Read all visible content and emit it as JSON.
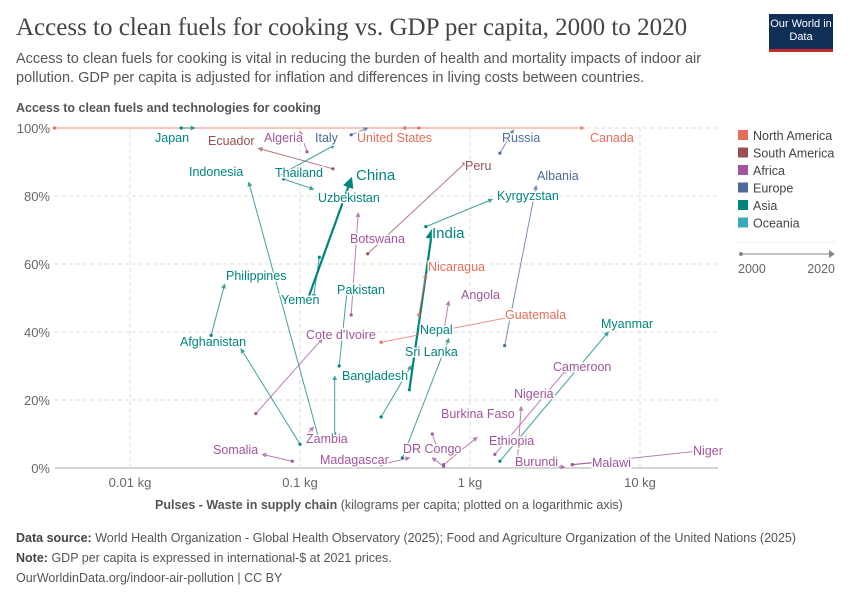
{
  "header": {
    "title": "Access to clean fuels for cooking vs. GDP per capita, 2000 to 2020",
    "subtitle": "Access to clean fuels for cooking is vital in reducing the burden of health and mortality impacts of indoor air pollution. GDP per capita is adjusted for inflation and differences in living costs between countries.",
    "logo": "Our World in Data"
  },
  "footer": {
    "source_label": "Data source:",
    "source": "World Health Organization - Global Health Observatory (2025); Food and Agriculture Organization of the United Nations (2025)",
    "note_label": "Note:",
    "note": "GDP per capita is expressed in international-$ at 2021 prices.",
    "link": "OurWorldinData.org/indoor-air-pollution | CC BY"
  },
  "chart_data": {
    "type": "scatter",
    "title": "Access to clean fuels for cooking vs. GDP per capita, 2000 to 2020",
    "ylabel": "Access to clean fuels and technologies for cooking",
    "xlabel_bold": "Pulses - Waste in supply chain",
    "xlabel_rest": "(kilograms per capita; plotted on a logarithmic axis)",
    "x_scale": "log",
    "xlim": [
      0.0035,
      28
    ],
    "ylim": [
      0,
      100
    ],
    "x_ticks": [
      {
        "v": 0.01,
        "label": "0.01 kg"
      },
      {
        "v": 0.1,
        "label": "0.1 kg"
      },
      {
        "v": 1,
        "label": "1 kg"
      },
      {
        "v": 10,
        "label": "10 kg"
      }
    ],
    "y_ticks": [
      {
        "v": 0,
        "label": "0%"
      },
      {
        "v": 20,
        "label": "20%"
      },
      {
        "v": 40,
        "label": "40%"
      },
      {
        "v": 60,
        "label": "60%"
      },
      {
        "v": 80,
        "label": "80%"
      },
      {
        "v": 100,
        "label": "100%"
      }
    ],
    "grid": true,
    "legend_position": "right",
    "legend": [
      {
        "name": "North America",
        "color": "#e56e5a"
      },
      {
        "name": "South America",
        "color": "#9a5050"
      },
      {
        "name": "Africa",
        "color": "#a2559c"
      },
      {
        "name": "Europe",
        "color": "#4c6a9c"
      },
      {
        "name": "Asia",
        "color": "#00847e"
      },
      {
        "name": "Oceania",
        "color": "#38aaba"
      }
    ],
    "time_legend": {
      "start": "2000",
      "end": "2020"
    },
    "series": [
      {
        "name": "Canada",
        "region": "North America",
        "start": [
          0.0036,
          100
        ],
        "end": [
          4.7,
          100
        ]
      },
      {
        "name": "Japan",
        "region": "Asia",
        "start": [
          0.02,
          100
        ],
        "end": [
          0.024,
          100
        ]
      },
      {
        "name": "Ecuador",
        "region": "South America",
        "start": [
          0.156,
          88
        ],
        "end": [
          0.057,
          94
        ]
      },
      {
        "name": "Algeria",
        "region": "Africa",
        "start": [
          0.11,
          93
        ],
        "end": [
          0.1,
          99
        ]
      },
      {
        "name": "Italy",
        "region": "Europe",
        "start": [
          0.2,
          98
        ],
        "end": [
          0.25,
          100
        ]
      },
      {
        "name": "United States",
        "region": "North America",
        "start": [
          0.5,
          100
        ],
        "end": [
          0.4,
          100
        ]
      },
      {
        "name": "Russia",
        "region": "Europe",
        "start": [
          1.5,
          92.6
        ],
        "end": [
          1.8,
          99.4
        ]
      },
      {
        "name": "Peru",
        "region": "South America",
        "start": [
          0.25,
          63
        ],
        "end": [
          0.95,
          90
        ]
      },
      {
        "name": "Albania",
        "region": "Europe",
        "start": [
          1.6,
          36
        ],
        "end": [
          2.45,
          83
        ]
      },
      {
        "name": "Kyrgyzstan",
        "region": "Asia",
        "start": [
          0.55,
          71
        ],
        "end": [
          1.35,
          79
        ]
      },
      {
        "name": "India",
        "region": "Asia",
        "start": [
          0.44,
          23
        ],
        "end": [
          0.6,
          70
        ],
        "big": true
      },
      {
        "name": "China",
        "region": "Asia",
        "start": [
          0.11,
          49
        ],
        "end": [
          0.2,
          85
        ],
        "big": true
      },
      {
        "name": "Indonesia",
        "region": "Asia",
        "start": [
          0.13,
          8
        ],
        "end": [
          0.05,
          84
        ]
      },
      {
        "name": "Thailand",
        "region": "Asia",
        "start": [
          0.075,
          86
        ],
        "end": [
          0.16,
          95
        ]
      },
      {
        "name": "Uzbekistan",
        "region": "Asia",
        "start": [
          0.08,
          85
        ],
        "end": [
          0.12,
          82
        ]
      },
      {
        "name": "Botswana",
        "region": "Africa",
        "start": [
          0.2,
          45
        ],
        "end": [
          0.22,
          75
        ]
      },
      {
        "name": "Nicaragua",
        "region": "North America",
        "start": [
          0.5,
          45
        ],
        "end": [
          0.55,
          57
        ]
      },
      {
        "name": "Philippines",
        "region": "Asia",
        "start": [
          0.03,
          39
        ],
        "end": [
          0.036,
          54
        ]
      },
      {
        "name": "Yemen",
        "region": "Asia",
        "start": [
          0.13,
          62
        ],
        "end": [
          0.12,
          50
        ]
      },
      {
        "name": "Pakistan",
        "region": "Asia",
        "start": [
          0.17,
          30
        ],
        "end": [
          0.19,
          53
        ]
      },
      {
        "name": "Angola",
        "region": "Africa",
        "start": [
          0.7,
          40
        ],
        "end": [
          0.75,
          49
        ]
      },
      {
        "name": "Guatemala",
        "region": "North America",
        "start": [
          0.3,
          37
        ],
        "end": [
          2.0,
          45
        ]
      },
      {
        "name": "Myanmar",
        "region": "Asia",
        "start": [
          1.5,
          2
        ],
        "end": [
          6.5,
          40
        ]
      },
      {
        "name": "Afghanistan",
        "region": "Asia",
        "start": [
          0.1,
          7
        ],
        "end": [
          0.045,
          35
        ]
      },
      {
        "name": "Cote d'Ivoire",
        "region": "Africa",
        "start": [
          0.055,
          16
        ],
        "end": [
          0.135,
          38
        ]
      },
      {
        "name": "Nepal",
        "region": "Asia",
        "start": [
          0.4,
          3
        ],
        "end": [
          0.75,
          38
        ]
      },
      {
        "name": "Sri Lanka",
        "region": "Asia",
        "start": [
          0.3,
          15
        ],
        "end": [
          0.45,
          30
        ]
      },
      {
        "name": "Bangladesh",
        "region": "Asia",
        "start": [
          0.16,
          10
        ],
        "end": [
          0.16,
          27
        ]
      },
      {
        "name": "Cameroon",
        "region": "Africa",
        "start": [
          1.4,
          4
        ],
        "end": [
          3.7,
          29
        ]
      },
      {
        "name": "Nigeria",
        "region": "Africa",
        "start": [
          1.9,
          2
        ],
        "end": [
          2.0,
          18
        ]
      },
      {
        "name": "Burkina Faso",
        "region": "Africa",
        "start": [
          0.6,
          10
        ],
        "end": [
          0.65,
          5
        ]
      },
      {
        "name": "Ethiopia",
        "region": "Africa",
        "start": [
          0.7,
          1
        ],
        "end": [
          1.1,
          9
        ]
      },
      {
        "name": "DR Congo",
        "region": "Africa",
        "start": [
          0.7,
          0.5
        ],
        "end": [
          0.6,
          3
        ]
      },
      {
        "name": "Zambia",
        "region": "Africa",
        "start": [
          0.11,
          10
        ],
        "end": [
          0.12,
          12
        ]
      },
      {
        "name": "Somalia",
        "region": "Africa",
        "start": [
          0.09,
          2
        ],
        "end": [
          0.06,
          4
        ]
      },
      {
        "name": "Madagascar",
        "region": "Africa",
        "start": [
          0.3,
          1
        ],
        "end": [
          0.44,
          3
        ]
      },
      {
        "name": "Burundi",
        "region": "Africa",
        "start": [
          2.8,
          0.5
        ],
        "end": [
          3.6,
          0.3
        ]
      },
      {
        "name": "Malawi",
        "region": "Africa",
        "start": [
          4,
          1
        ],
        "end": [
          6.8,
          2
        ]
      },
      {
        "name": "Niger",
        "region": "Africa",
        "start": [
          4,
          1
        ],
        "end": [
          22,
          5
        ]
      }
    ]
  }
}
